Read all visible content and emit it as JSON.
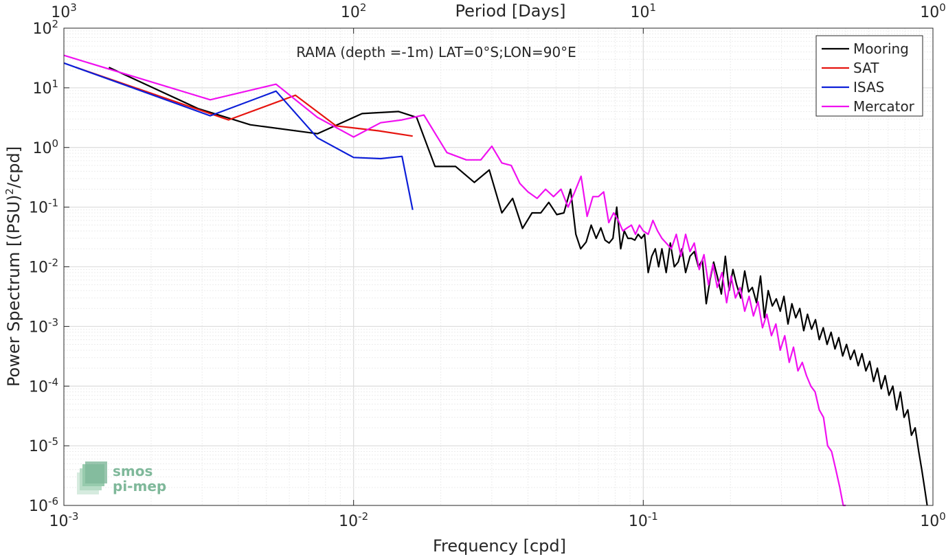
{
  "chart_data": {
    "type": "line",
    "title": "RAMA (depth =-1m) LAT=0°S;LON=90°E",
    "xlabel": "Frequency [cpd]",
    "ylabel_main": "Power Spectrum [(PSU)",
    "ylabel_sup": "2",
    "ylabel_tail": "/cpd]",
    "top_xlabel": "Period [Days]",
    "xscale": "log",
    "yscale": "log",
    "xlim": [
      0.001,
      1
    ],
    "ylim": [
      1e-06,
      100
    ],
    "grid": true,
    "legend_position": "top-right",
    "x_ticks": [
      {
        "value": 0.001,
        "base": "10",
        "exp": "-3"
      },
      {
        "value": 0.01,
        "base": "10",
        "exp": "-2"
      },
      {
        "value": 0.1,
        "base": "10",
        "exp": "-1"
      },
      {
        "value": 1,
        "base": "10",
        "exp": "0"
      }
    ],
    "y_ticks": [
      {
        "value": 1e-06,
        "base": "10",
        "exp": "-6"
      },
      {
        "value": 1e-05,
        "base": "10",
        "exp": "-5"
      },
      {
        "value": 0.0001,
        "base": "10",
        "exp": "-4"
      },
      {
        "value": 0.001,
        "base": "10",
        "exp": "-3"
      },
      {
        "value": 0.01,
        "base": "10",
        "exp": "-2"
      },
      {
        "value": 0.1,
        "base": "10",
        "exp": "-1"
      },
      {
        "value": 1,
        "base": "10",
        "exp": "0"
      },
      {
        "value": 10,
        "base": "10",
        "exp": "1"
      },
      {
        "value": 100,
        "base": "10",
        "exp": "2"
      }
    ],
    "top_ticks": [
      {
        "value": 0.001,
        "base": "10",
        "exp": "3"
      },
      {
        "value": 0.01,
        "base": "10",
        "exp": "2"
      },
      {
        "value": 0.1,
        "base": "10",
        "exp": "1"
      },
      {
        "value": 1,
        "base": "10",
        "exp": "0"
      }
    ],
    "series": [
      {
        "name": "Mooring",
        "color": "#000000",
        "x": [
          0.00143,
          0.0029,
          0.0044,
          0.0075,
          0.0107,
          0.0143,
          0.0165,
          0.0191,
          0.0225,
          0.0261,
          0.0294,
          0.0325,
          0.0354,
          0.0383,
          0.0413,
          0.0443,
          0.0472,
          0.0503,
          0.0532,
          0.0561,
          0.0585,
          0.0608,
          0.0635,
          0.0661,
          0.0688,
          0.0714,
          0.0738,
          0.0762,
          0.0786,
          0.081,
          0.0836,
          0.086,
          0.0885,
          0.091,
          0.0935,
          0.096,
          0.0985,
          0.101,
          0.104,
          0.107,
          0.11,
          0.113,
          0.116,
          0.12,
          0.124,
          0.128,
          0.132,
          0.136,
          0.14,
          0.145,
          0.15,
          0.155,
          0.16,
          0.165,
          0.17,
          0.175,
          0.18,
          0.186,
          0.192,
          0.198,
          0.204,
          0.21,
          0.217,
          0.224,
          0.231,
          0.238,
          0.246,
          0.254,
          0.262,
          0.27,
          0.279,
          0.288,
          0.297,
          0.306,
          0.316,
          0.326,
          0.336,
          0.347,
          0.358,
          0.369,
          0.381,
          0.393,
          0.405,
          0.418,
          0.431,
          0.445,
          0.459,
          0.473,
          0.488,
          0.503,
          0.519,
          0.535,
          0.552,
          0.569,
          0.587,
          0.605,
          0.624,
          0.643,
          0.663,
          0.684,
          0.705,
          0.727,
          0.749,
          0.772,
          0.795,
          0.819,
          0.843,
          0.868,
          0.893,
          0.915,
          0.935,
          0.955
        ],
        "y": [
          22,
          4.5,
          2.4,
          1.7,
          3.7,
          4.0,
          3.2,
          0.48,
          0.48,
          0.26,
          0.42,
          0.08,
          0.14,
          0.044,
          0.08,
          0.08,
          0.12,
          0.075,
          0.08,
          0.2,
          0.035,
          0.02,
          0.026,
          0.05,
          0.03,
          0.045,
          0.028,
          0.025,
          0.03,
          0.1,
          0.02,
          0.04,
          0.03,
          0.03,
          0.028,
          0.035,
          0.03,
          0.035,
          0.008,
          0.015,
          0.02,
          0.01,
          0.02,
          0.008,
          0.025,
          0.01,
          0.012,
          0.02,
          0.008,
          0.015,
          0.018,
          0.01,
          0.013,
          0.0024,
          0.006,
          0.012,
          0.007,
          0.0035,
          0.015,
          0.004,
          0.009,
          0.005,
          0.003,
          0.0085,
          0.0038,
          0.0045,
          0.0025,
          0.007,
          0.0014,
          0.004,
          0.0022,
          0.0029,
          0.0018,
          0.0032,
          0.0011,
          0.0024,
          0.0014,
          0.002,
          0.00085,
          0.0016,
          0.0009,
          0.0013,
          0.0006,
          0.00095,
          0.0005,
          0.0008,
          0.00042,
          0.00065,
          0.00032,
          0.0005,
          0.00028,
          0.0004,
          0.00022,
          0.00035,
          0.00018,
          0.00026,
          0.00012,
          0.0002,
          9e-05,
          0.00015,
          7e-05,
          0.0001,
          4e-05,
          8e-05,
          3e-05,
          4e-05,
          1.5e-05,
          2e-05,
          8e-06,
          4e-06,
          2e-06,
          1e-06
        ]
      },
      {
        "name": "SAT",
        "color": "#e6140f",
        "x": [
          0.0011,
          0.0037,
          0.0063,
          0.0087,
          0.0122,
          0.016
        ],
        "y": [
          22,
          2.9,
          7.5,
          2.3,
          1.9,
          1.55
        ]
      },
      {
        "name": "ISAS",
        "color": "#0c1ed8",
        "x": [
          0.001,
          0.0032,
          0.0054,
          0.0075,
          0.01,
          0.0124,
          0.0147,
          0.016
        ],
        "y": [
          26,
          3.4,
          8.8,
          1.45,
          0.68,
          0.65,
          0.71,
          0.09
        ]
      },
      {
        "name": "Mercator",
        "color": "#f010f0",
        "x": [
          0.001,
          0.0032,
          0.0054,
          0.0075,
          0.01,
          0.0124,
          0.0147,
          0.0175,
          0.021,
          0.0245,
          0.0275,
          0.03,
          0.0325,
          0.035,
          0.0375,
          0.04,
          0.043,
          0.046,
          0.049,
          0.052,
          0.055,
          0.058,
          0.061,
          0.064,
          0.067,
          0.07,
          0.073,
          0.076,
          0.079,
          0.082,
          0.085,
          0.088,
          0.091,
          0.094,
          0.097,
          0.1,
          0.104,
          0.108,
          0.112,
          0.116,
          0.12,
          0.125,
          0.13,
          0.135,
          0.14,
          0.145,
          0.15,
          0.156,
          0.162,
          0.168,
          0.174,
          0.18,
          0.187,
          0.194,
          0.201,
          0.208,
          0.216,
          0.224,
          0.232,
          0.24,
          0.249,
          0.258,
          0.267,
          0.277,
          0.287,
          0.297,
          0.308,
          0.319,
          0.33,
          0.342,
          0.354,
          0.366,
          0.379,
          0.392,
          0.405,
          0.419,
          0.433,
          0.447,
          0.462,
          0.477,
          0.49,
          0.5
        ],
        "y": [
          35,
          6.3,
          11.5,
          3.2,
          1.5,
          2.6,
          2.9,
          3.5,
          0.82,
          0.62,
          0.62,
          1.05,
          0.55,
          0.5,
          0.25,
          0.18,
          0.14,
          0.2,
          0.15,
          0.2,
          0.1,
          0.18,
          0.33,
          0.07,
          0.15,
          0.15,
          0.18,
          0.055,
          0.08,
          0.06,
          0.04,
          0.045,
          0.05,
          0.035,
          0.05,
          0.04,
          0.035,
          0.06,
          0.04,
          0.03,
          0.025,
          0.02,
          0.035,
          0.015,
          0.035,
          0.018,
          0.025,
          0.009,
          0.016,
          0.005,
          0.011,
          0.0045,
          0.008,
          0.0025,
          0.007,
          0.003,
          0.0045,
          0.0018,
          0.0032,
          0.0015,
          0.0026,
          0.00095,
          0.0016,
          0.0007,
          0.0011,
          0.0004,
          0.0007,
          0.00025,
          0.00045,
          0.00018,
          0.00025,
          0.00015,
          0.0001,
          8e-05,
          4e-05,
          3e-05,
          1e-05,
          8e-06,
          4e-06,
          2e-06,
          1e-06,
          1e-06
        ]
      }
    ]
  },
  "watermark": {
    "line1": "smos",
    "line2": "pi-mep"
  }
}
